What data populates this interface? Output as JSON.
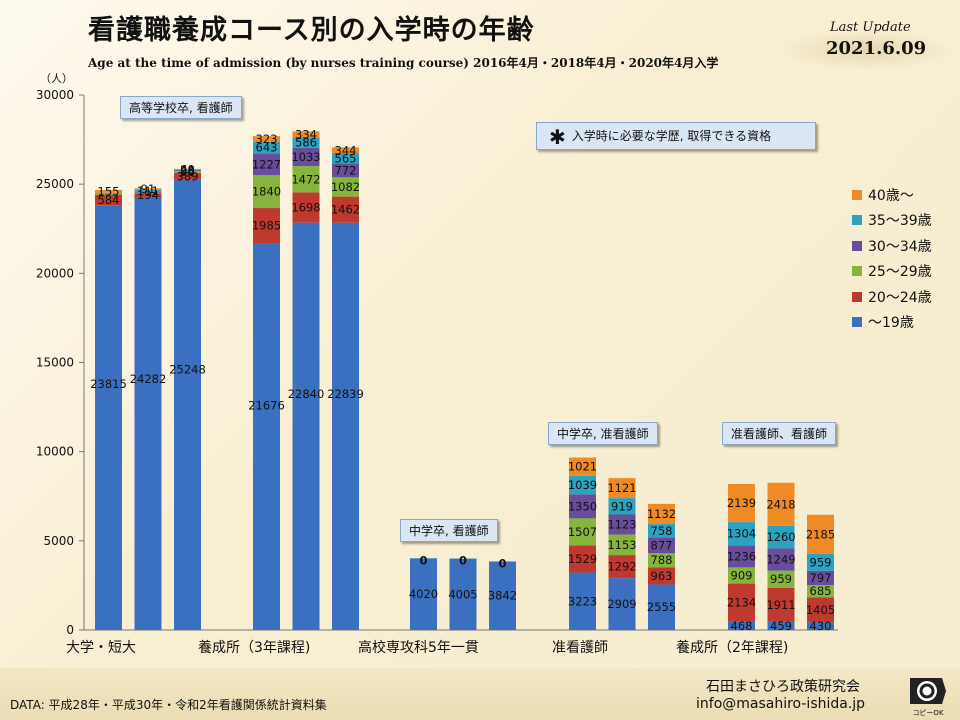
{
  "header": {
    "title": "看護職養成コース別の入学時の年齢",
    "subtitle": "Age at the time of admission (by nurses training course)  2016年4月・2018年4月・2020年4月入学",
    "last_update_label": "Last Update",
    "last_update_date": "2021.6.09"
  },
  "note": {
    "star": "✱",
    "text": "入学時に必要な学歴, 取得できる資格"
  },
  "footer": {
    "data_source": "DATA: 平成28年・平成30年・令和2年看護関係統計資料集",
    "organization": "石田まさひろ政策研究会",
    "email": "info@masahiro-ishida.jp",
    "logo_caption": "コピーOK"
  },
  "colors": {
    "age19": "#3b70c0",
    "age20_24": "#c0392f",
    "age25_29": "#86b43c",
    "age30_34": "#6a4c9c",
    "age35_39": "#2aa3c0",
    "age40": "#f08a24"
  },
  "chart_data": {
    "type": "bar",
    "stacked": true,
    "y_unit": "（人）",
    "ylim": [
      0,
      30000
    ],
    "yticks": [
      0,
      5000,
      10000,
      15000,
      20000,
      25000,
      30000
    ],
    "grid": false,
    "legend_position": "right",
    "categories": [
      "大学・短大",
      "養成所（3年課程)",
      "高校専攻科5年一貫",
      "准看護師",
      "養成所（2年課程)"
    ],
    "callouts": [
      "高等学校卒, 看護師",
      "中学卒, 看護師",
      "中学卒, 准看護師",
      "准看護師、看護師"
    ],
    "series": [
      {
        "name": "～19歳",
        "color_key": "age19"
      },
      {
        "name": "20～24歳",
        "color_key": "age20_24"
      },
      {
        "name": "25～29歳",
        "color_key": "age25_29"
      },
      {
        "name": "30～34歳",
        "color_key": "age30_34"
      },
      {
        "name": "35～39歳",
        "color_key": "age35_39"
      },
      {
        "name": "40歳～",
        "color_key": "age40"
      }
    ],
    "groups": [
      {
        "category": "大学・短大",
        "bars": [
          {
            "values": [
              23815,
              584,
              60,
              30,
              30,
              155
            ],
            "labels": [
              "23815",
              "584",
              "",
              "",
              "",
              "155"
            ]
          },
          {
            "values": [
              24282,
              194,
              50,
              40,
              111,
              91
            ],
            "labels": [
              "24282",
              "194",
              "",
              "",
              "111",
              "91"
            ]
          },
          {
            "values": [
              25248,
              389,
              96,
              35,
              28,
              60
            ],
            "labels": [
              "25248",
              "389",
              "96",
              "35",
              "28",
              "60"
            ]
          }
        ]
      },
      {
        "category": "養成所（3年課程)",
        "bars": [
          {
            "values": [
              21676,
              1985,
              1840,
              1227,
              643,
              323
            ],
            "labels": [
              "21676",
              "1985",
              "1840",
              "1227",
              "643",
              "323"
            ]
          },
          {
            "values": [
              22840,
              1698,
              1472,
              1033,
              586,
              334
            ],
            "labels": [
              "22840",
              "1698",
              "1472",
              "1033",
              "586",
              "334"
            ]
          },
          {
            "values": [
              22839,
              1462,
              1082,
              772,
              565,
              344
            ],
            "labels": [
              "22839",
              "1462",
              "1082",
              "772",
              "565",
              "344"
            ]
          }
        ]
      },
      {
        "category": "高校専攻科5年一貫",
        "bars": [
          {
            "values": [
              4020,
              0,
              0,
              0,
              0,
              0
            ],
            "labels": [
              "4020",
              "",
              "",
              "",
              "",
              ""
            ],
            "top_label": "0"
          },
          {
            "values": [
              4005,
              0,
              0,
              0,
              0,
              0
            ],
            "labels": [
              "4005",
              "",
              "",
              "",
              "",
              ""
            ],
            "top_label": "0"
          },
          {
            "values": [
              3842,
              0,
              0,
              0,
              0,
              0
            ],
            "labels": [
              "3842",
              "",
              "",
              "",
              "",
              ""
            ],
            "top_label": "0"
          }
        ]
      },
      {
        "category": "准看護師",
        "bars": [
          {
            "values": [
              3223,
              1529,
              1507,
              1350,
              1039,
              1021
            ],
            "labels": [
              "3223",
              "1529",
              "1507",
              "1350",
              "1039",
              "1021"
            ]
          },
          {
            "values": [
              2909,
              1292,
              1153,
              1123,
              919,
              1121
            ],
            "labels": [
              "2909",
              "1292",
              "1153",
              "1123",
              "919",
              "1121"
            ]
          },
          {
            "values": [
              2555,
              963,
              788,
              877,
              758,
              1132
            ],
            "labels": [
              "2555",
              "963",
              "788",
              "877",
              "758",
              "1132"
            ]
          }
        ]
      },
      {
        "category": "養成所（2年課程)",
        "bars": [
          {
            "values": [
              468,
              2134,
              909,
              1236,
              1304,
              2139
            ],
            "labels": [
              "468",
              "2134",
              "909",
              "1236",
              "1304",
              "2139"
            ]
          },
          {
            "values": [
              459,
              1911,
              959,
              1249,
              1260,
              2418
            ],
            "labels": [
              "459",
              "1911",
              "959",
              "1249",
              "1260",
              "2418"
            ]
          },
          {
            "values": [
              430,
              1405,
              685,
              797,
              959,
              2185
            ],
            "labels": [
              "430",
              "1405",
              "685",
              "797",
              "959",
              "2185"
            ]
          }
        ]
      }
    ]
  }
}
